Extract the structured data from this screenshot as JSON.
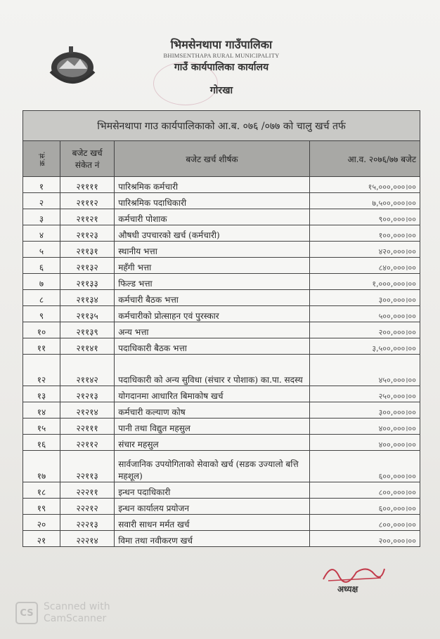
{
  "letterhead": {
    "municipality_np": "भिमसेनथापा गाउँपालिका",
    "municipality_en": "BHIMSENTHAPA RURAL MUNICIPALITY",
    "office": "गाउँ कार्यपालिका कार्यालय",
    "district": "गोरखा"
  },
  "table": {
    "title": "भिमसेनथापा गाउ कार्यपालिकाको आ.ब. ०७६ /०७७ को चालु खर्च तर्फ",
    "headers": [
      "क्र.सं.",
      "बजेट खर्च संकेत नं",
      "बजेट खर्च शीर्षक",
      "आ.व. २०७६/७७ बजेट"
    ],
    "rows": [
      {
        "sn": "१",
        "code": "२११११",
        "title": "पारिश्रमिक कर्मचारी",
        "budget": "१५,०००,०००।००"
      },
      {
        "sn": "२",
        "code": "२१११२",
        "title": "पारिश्रमिक पदाधिकारी",
        "budget": "७,५००,०००।००"
      },
      {
        "sn": "३",
        "code": "२११२१",
        "title": "कर्मचारी पोशाक",
        "budget": "९००,०००।००"
      },
      {
        "sn": "४",
        "code": "२११२३",
        "title": "औषधी उपचारको खर्च (कर्मचारी)",
        "budget": "१००,०००।००"
      },
      {
        "sn": "५",
        "code": "२११३१",
        "title": "स्थानीय भत्ता",
        "budget": "४२०,०००।००"
      },
      {
        "sn": "६",
        "code": "२११३२",
        "title": "महँगी भत्ता",
        "budget": "८४०,०००।००"
      },
      {
        "sn": "७",
        "code": "२११३३",
        "title": "फिल्ड भत्ता",
        "budget": "१,०००,०००।००"
      },
      {
        "sn": "८",
        "code": "२११३४",
        "title": "कर्मचारी बैठक भत्ता",
        "budget": "३००,०००।००"
      },
      {
        "sn": "९",
        "code": "२११३५",
        "title": "कर्मचारीको प्रोत्साहन एवं पुरस्कार",
        "budget": "५००,०००।००"
      },
      {
        "sn": "१०",
        "code": "२११३९",
        "title": "अन्य भत्ता",
        "budget": "२००,०००।००"
      },
      {
        "sn": "११",
        "code": "२११४१",
        "title": "पदाधिकारी बैठक भत्ता",
        "budget": "३,५००,०००।००"
      },
      {
        "sn": "१२",
        "code": "२११४२",
        "title": "पदाधिकारी को अन्य सुविधा (संचार र पोशाक) का.पा. सदस्य",
        "budget": "४५०,०००।००"
      },
      {
        "sn": "१३",
        "code": "२१२१३",
        "title": "योगदानमा आधारित बिमाकोष खर्च",
        "budget": "२५०,०००।००"
      },
      {
        "sn": "१४",
        "code": "२१२१४",
        "title": "कर्मचारी कल्याण कोष",
        "budget": "३००,०००।००"
      },
      {
        "sn": "१५",
        "code": "२२१११",
        "title": "पानी तथा विद्युत महसुल",
        "budget": "४००,०००।००"
      },
      {
        "sn": "१६",
        "code": "२२११२",
        "title": "संचार महसुल",
        "budget": "४००,०००।००"
      },
      {
        "sn": "१७",
        "code": "२२११३",
        "title": "सार्वजानिक उपयोगिताको सेवाको खर्च (सडक उज्यालो बत्ति महशूल)",
        "budget": "६००,०००।००"
      },
      {
        "sn": "१८",
        "code": "२२२११",
        "title": "इन्धन पदाधिकारी",
        "budget": "८००,०००।००"
      },
      {
        "sn": "१९",
        "code": "२२२१२",
        "title": "इन्धन कार्यालय प्रयोजन",
        "budget": "६००,०००।००"
      },
      {
        "sn": "२०",
        "code": "२२२१३",
        "title": "सवारी साधन मर्मत खर्च",
        "budget": "८००,०००।००"
      },
      {
        "sn": "२१",
        "code": "२२२१४",
        "title": "विमा तथा नवीकरण खर्च",
        "budget": "२००,०००।००"
      }
    ]
  },
  "signature": {
    "designation": "अध्यक्ष"
  },
  "watermark": {
    "line1": "Scanned with",
    "line2": "CamScanner",
    "logo": "CS"
  }
}
